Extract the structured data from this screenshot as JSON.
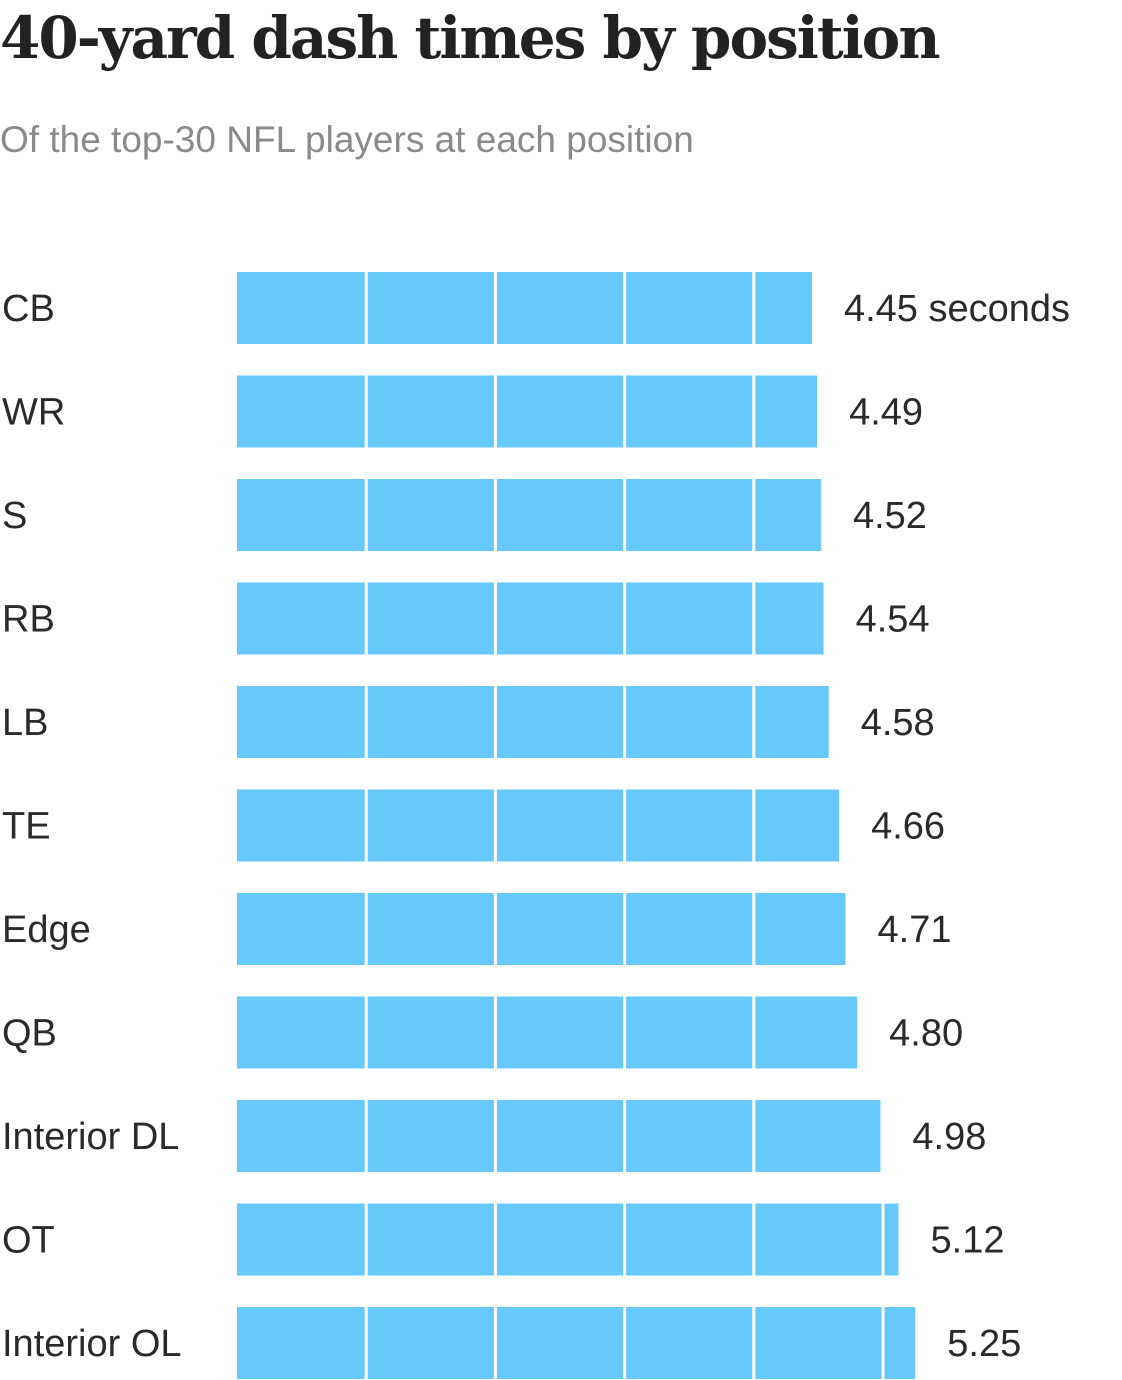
{
  "chart_data": {
    "type": "bar",
    "orientation": "horizontal",
    "title": "40-yard dash times by position",
    "subtitle": "Of the top-30 NFL players at each position",
    "unit_label": "seconds",
    "categories": [
      "CB",
      "WR",
      "S",
      "RB",
      "LB",
      "TE",
      "Edge",
      "QB",
      "Interior DL",
      "OT",
      "Interior OL"
    ],
    "values": [
      4.45,
      4.49,
      4.52,
      4.54,
      4.58,
      4.66,
      4.71,
      4.8,
      4.98,
      5.12,
      5.25
    ],
    "value_labels": [
      "4.45 seconds",
      "4.49",
      "4.52",
      "4.54",
      "4.58",
      "4.66",
      "4.71",
      "4.80",
      "4.98",
      "5.12",
      "5.25"
    ],
    "segment_size": 1,
    "xlim": [
      0,
      5.25
    ],
    "bar_color": "#66c8fb",
    "segment_divider_color": "#ffffff",
    "grid": false,
    "legend": false
  }
}
